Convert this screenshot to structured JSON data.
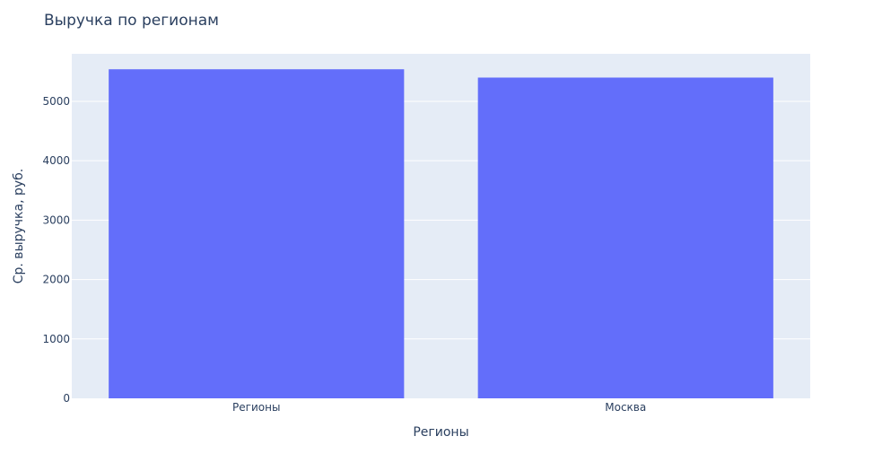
{
  "chart_data": {
    "type": "bar",
    "title": "Выручка по регионам",
    "xlabel": "Регионы",
    "ylabel": "Ср. выручка, руб.",
    "categories": [
      "Регионы",
      "Москва"
    ],
    "values": [
      5540,
      5400
    ],
    "ylim": [
      0,
      5800
    ],
    "yticks": [
      0,
      1000,
      2000,
      3000,
      4000,
      5000
    ],
    "grid": true,
    "colors": {
      "bar": "#636efa",
      "plot_bg": "#e5ecf6",
      "grid": "#ffffff",
      "text": "#2a3f5f"
    }
  }
}
